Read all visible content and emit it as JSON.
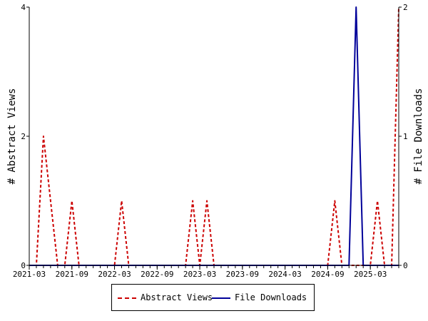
{
  "chart_data": {
    "type": "line",
    "x_tick_labels": [
      "2021-03",
      "2021-09",
      "2022-03",
      "2022-09",
      "2023-03",
      "2023-09",
      "2024-03",
      "2024-09",
      "2025-03"
    ],
    "x_start": "2021-03",
    "months": [
      "2021-03",
      "2021-04",
      "2021-05",
      "2021-06",
      "2021-07",
      "2021-08",
      "2021-09",
      "2021-10",
      "2021-11",
      "2021-12",
      "2022-01",
      "2022-02",
      "2022-03",
      "2022-04",
      "2022-05",
      "2022-06",
      "2022-07",
      "2022-08",
      "2022-09",
      "2022-10",
      "2022-11",
      "2022-12",
      "2023-01",
      "2023-02",
      "2023-03",
      "2023-04",
      "2023-05",
      "2023-06",
      "2023-07",
      "2023-08",
      "2023-09",
      "2023-10",
      "2023-11",
      "2023-12",
      "2024-01",
      "2024-02",
      "2024-03",
      "2024-04",
      "2024-05",
      "2024-06",
      "2024-07",
      "2024-08",
      "2024-09",
      "2024-10",
      "2024-11",
      "2024-12",
      "2025-01",
      "2025-02",
      "2025-03",
      "2025-04",
      "2025-05",
      "2025-06",
      "2025-07"
    ],
    "ylabel_left": "# Abstract Views",
    "ylabel_right": "# File Downloads",
    "ylim_left": [
      0,
      4
    ],
    "ylim_right": [
      0,
      2
    ],
    "y_ticks_left": [
      "0",
      "2",
      "4"
    ],
    "y_ticks_right": [
      "0",
      "1",
      "2"
    ],
    "series": [
      {
        "name": "Abstract Views",
        "axis": "left",
        "color": "#cc0000",
        "style": "dashed",
        "values": [
          0,
          0,
          2,
          1,
          0,
          0,
          1,
          0,
          0,
          0,
          0,
          0,
          0,
          1,
          0,
          0,
          0,
          0,
          0,
          0,
          0,
          0,
          0,
          1,
          0,
          1,
          0,
          0,
          0,
          0,
          0,
          0,
          0,
          0,
          0,
          0,
          0,
          0,
          0,
          0,
          0,
          0,
          0,
          1,
          0,
          0,
          0,
          0,
          0,
          1,
          0,
          0,
          4
        ]
      },
      {
        "name": "File Downloads",
        "axis": "right",
        "color": "#000099",
        "style": "solid",
        "values": [
          0,
          0,
          0,
          0,
          0,
          0,
          0,
          0,
          0,
          0,
          0,
          0,
          0,
          0,
          0,
          0,
          0,
          0,
          0,
          0,
          0,
          0,
          0,
          0,
          0,
          0,
          0,
          0,
          0,
          0,
          0,
          0,
          0,
          0,
          0,
          0,
          0,
          0,
          0,
          0,
          0,
          0,
          0,
          0,
          0,
          0,
          2,
          0,
          0,
          0,
          0,
          0,
          0
        ]
      }
    ],
    "grid": false,
    "legend_position": "bottom"
  },
  "legend": {
    "abstract_views": "Abstract Views",
    "file_downloads": "File Downloads"
  }
}
